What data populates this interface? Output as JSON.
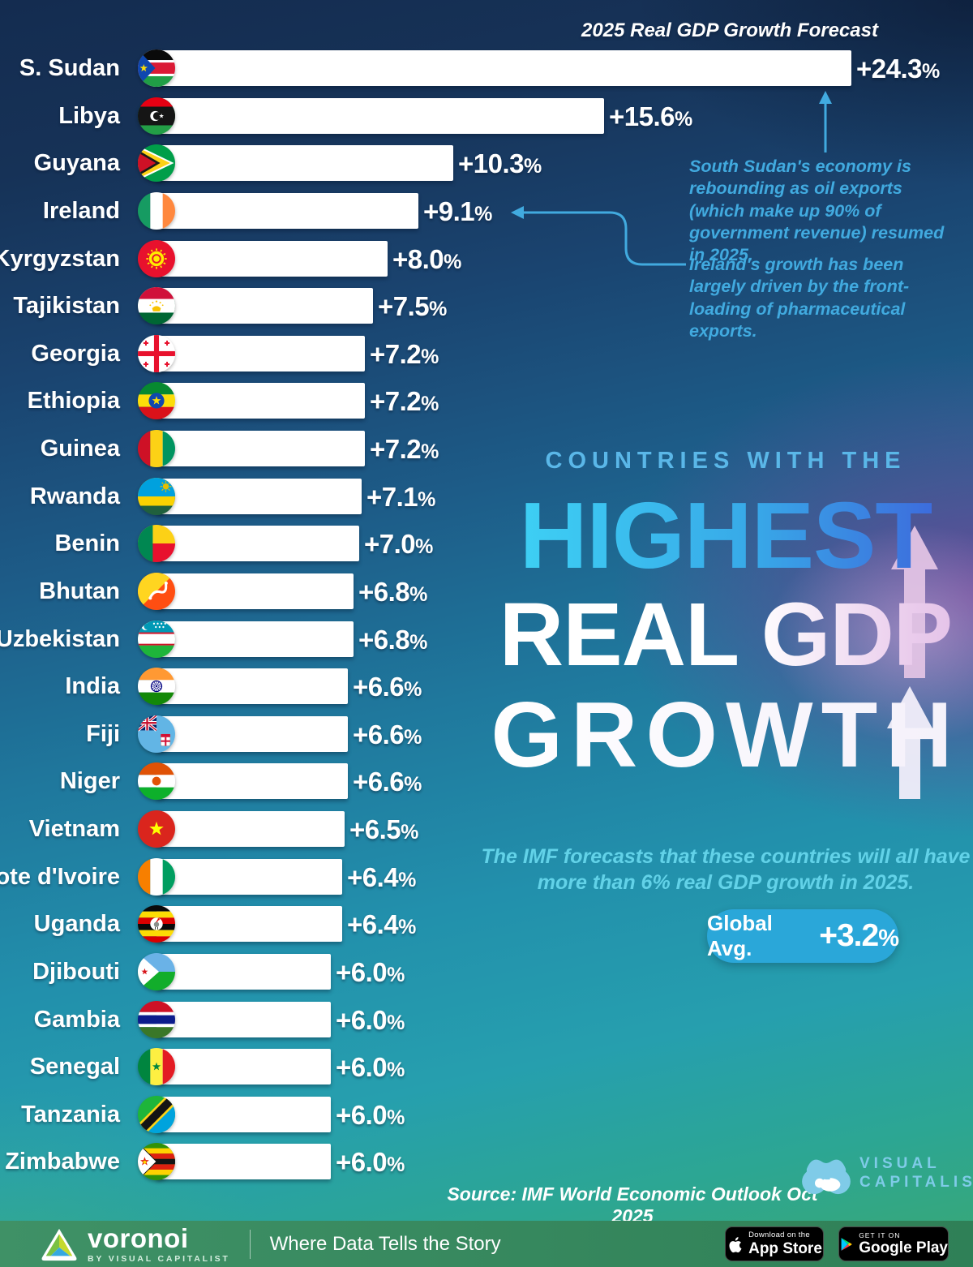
{
  "chart_data": {
    "type": "bar",
    "orientation": "horizontal",
    "title": "2025 Real GDP Growth Forecast",
    "value_unit": "%",
    "categories": [
      "S. Sudan",
      "Libya",
      "Guyana",
      "Ireland",
      "Kyrgyzstan",
      "Tajikistan",
      "Georgia",
      "Ethiopia",
      "Guinea",
      "Rwanda",
      "Benin",
      "Bhutan",
      "Uzbekistan",
      "India",
      "Fiji",
      "Niger",
      "Vietnam",
      "Cote d'Ivoire",
      "Uganda",
      "Djibouti",
      "Gambia",
      "Senegal",
      "Tanzania",
      "Zimbabwe"
    ],
    "values": [
      24.3,
      15.6,
      10.3,
      9.1,
      8.0,
      7.5,
      7.2,
      7.2,
      7.2,
      7.1,
      7.0,
      6.8,
      6.8,
      6.6,
      6.6,
      6.6,
      6.5,
      6.4,
      6.4,
      6.0,
      6.0,
      6.0,
      6.0,
      6.0
    ],
    "labels": [
      "+24.3%",
      "+15.6%",
      "+10.3%",
      "+9.1%",
      "+8.0%",
      "+7.5%",
      "+7.2%",
      "+7.2%",
      "+7.2%",
      "+7.1%",
      "+7.0%",
      "+6.8%",
      "+6.8%",
      "+6.6%",
      "+6.6%",
      "+6.6%",
      "+6.5%",
      "+6.4%",
      "+6.4%",
      "+6.0%",
      "+6.0%",
      "+6.0%",
      "+6.0%",
      "+6.0%"
    ],
    "flags": [
      "ss",
      "ly",
      "gy",
      "ie",
      "kg",
      "tj",
      "ge",
      "et",
      "gn",
      "rw",
      "bj",
      "bt",
      "uz",
      "in",
      "fj",
      "ne",
      "vn",
      "ci",
      "ug",
      "dj",
      "gm",
      "sn",
      "tz",
      "zw"
    ],
    "xlim": [
      0,
      25.6
    ],
    "bar_color": "#ffffff",
    "global_avg": 3.2
  },
  "annotations": {
    "south_sudan": "South Sudan's economy is rebounding as oil exports (which make up 90% of government revenue) resumed in 2025.",
    "ireland": "Ireland's growth has been largely driven by the front-loading of pharmaceutical exports."
  },
  "title_block": {
    "kicker": "COUNTRIES WITH THE",
    "line1": "HIGHEST",
    "line2": "REAL GDP",
    "line3": "GROWTH"
  },
  "subtitle": "The IMF forecasts that these countries will all have more than 6% real GDP growth in 2025.",
  "global_avg_badge": {
    "label": "Global Avg.",
    "value": "+3.2%"
  },
  "source": "Source: IMF World Economic Outlook Oct 2025",
  "vc_logo": {
    "line1": "VISUAL",
    "line2": "CAPITALIST"
  },
  "footer": {
    "brand": "voronoi",
    "byline": "BY VISUAL CAPITALIST",
    "tagline": "Where Data Tells the Story",
    "appstore_top": "Download on the",
    "appstore_bottom": "App Store",
    "googleplay_top": "GET IT ON",
    "googleplay_bottom": "Google Play"
  },
  "colors": {
    "accent_blue": "#41aadf",
    "cyan_text": "#62d2e8",
    "kicker_blue": "#5ab7e8",
    "badge_blue": "#2aa7d9",
    "bar_white": "#ffffff",
    "footer_green": "#3d9064",
    "vc_blue": "#7fcbe8"
  }
}
